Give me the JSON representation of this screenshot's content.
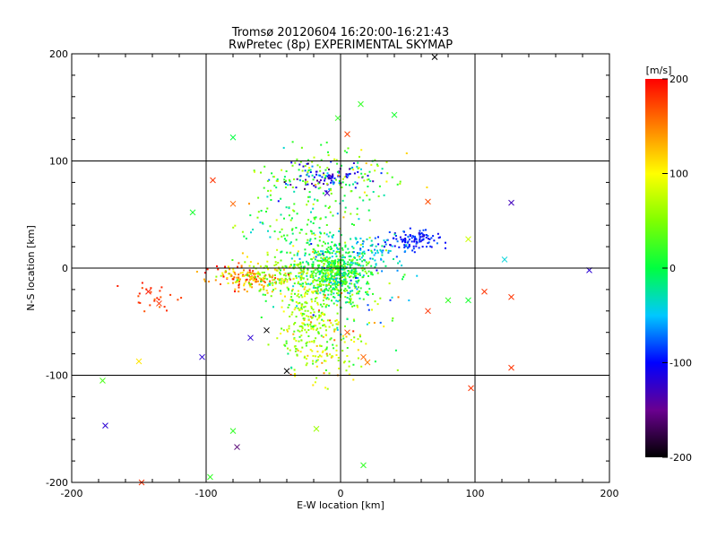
{
  "chart_data": {
    "type": "scatter",
    "title": "Tromsø 20120604 16:20:00-16:21:43",
    "subtitle": "RwPretec (8p) EXPERIMENTAL SKYMAP",
    "xlabel": "E-W location [km]",
    "ylabel": "N-S location [km]",
    "xlim": [
      -200,
      200
    ],
    "ylim": [
      -200,
      200
    ],
    "xticks": [
      -200,
      -100,
      0,
      100,
      200
    ],
    "yticks": [
      -200,
      -100,
      0,
      100,
      200
    ],
    "grid": true,
    "colorbar": {
      "label": "[m/s]",
      "range": [
        -200,
        200
      ],
      "ticks": [
        -200,
        -100,
        0,
        100,
        200
      ],
      "colormap": "rainbow: black-purple-blue-cyan-green-yellow-orange-red"
    },
    "markers": {
      "small": "dot (individual estimates)",
      "large": "x (averaged estimates)"
    },
    "clusters": [
      {
        "x": -3,
        "y": -5,
        "sx": 12,
        "sy": 14,
        "n": 560,
        "v": 10,
        "sv": 35
      },
      {
        "x": -25,
        "y": 40,
        "sx": 25,
        "sy": 30,
        "n": 260,
        "v": 20,
        "sv": 45
      },
      {
        "x": -10,
        "y": 85,
        "sx": 14,
        "sy": 6,
        "n": 90,
        "v": -110,
        "sv": 30
      },
      {
        "x": 0,
        "y": 90,
        "sx": 25,
        "sy": 12,
        "n": 90,
        "v": 40,
        "sv": 50
      },
      {
        "x": 55,
        "y": 25,
        "sx": 10,
        "sy": 5,
        "n": 110,
        "v": -95,
        "sv": 12
      },
      {
        "x": 25,
        "y": 15,
        "sx": 12,
        "sy": 8,
        "n": 70,
        "v": -40,
        "sv": 25
      },
      {
        "x": -70,
        "y": -10,
        "sx": 12,
        "sy": 6,
        "n": 160,
        "v": 130,
        "sv": 40
      },
      {
        "x": -40,
        "y": -8,
        "sx": 16,
        "sy": 10,
        "n": 140,
        "v": 70,
        "sv": 40
      },
      {
        "x": -25,
        "y": -50,
        "sx": 10,
        "sy": 22,
        "n": 220,
        "v": 60,
        "sv": 35
      },
      {
        "x": -10,
        "y": -75,
        "sx": 14,
        "sy": 18,
        "n": 90,
        "v": 90,
        "sv": 40
      },
      {
        "x": -140,
        "y": -25,
        "sx": 10,
        "sy": 8,
        "n": 25,
        "v": 180,
        "sv": 10
      },
      {
        "x": 10,
        "y": -20,
        "sx": 20,
        "sy": 25,
        "n": 80,
        "v": 20,
        "sv": 60
      }
    ],
    "scatter_x_points": [
      {
        "x": -80,
        "y": 122,
        "v": 0
      },
      {
        "x": -95,
        "y": 82,
        "v": 180
      },
      {
        "x": -110,
        "y": 52,
        "v": 10
      },
      {
        "x": 5,
        "y": 125,
        "v": 175
      },
      {
        "x": 15,
        "y": 153,
        "v": 20
      },
      {
        "x": 40,
        "y": 143,
        "v": 10
      },
      {
        "x": 70,
        "y": 197,
        "v": -200
      },
      {
        "x": -2,
        "y": 140,
        "v": 20
      },
      {
        "x": -80,
        "y": 60,
        "v": 160
      },
      {
        "x": -10,
        "y": 70,
        "v": -130
      },
      {
        "x": 65,
        "y": 62,
        "v": 170
      },
      {
        "x": 95,
        "y": 27,
        "v": 80
      },
      {
        "x": 127,
        "y": 61,
        "v": -130
      },
      {
        "x": 122,
        "y": 8,
        "v": -40
      },
      {
        "x": 185,
        "y": -2,
        "v": -120
      },
      {
        "x": 107,
        "y": -22,
        "v": 180
      },
      {
        "x": 127,
        "y": -27,
        "v": 180
      },
      {
        "x": 80,
        "y": -30,
        "v": 20
      },
      {
        "x": 95,
        "y": -30,
        "v": 10
      },
      {
        "x": 65,
        "y": -40,
        "v": 180
      },
      {
        "x": -67,
        "y": -65,
        "v": -120
      },
      {
        "x": -55,
        "y": -58,
        "v": -200
      },
      {
        "x": -40,
        "y": -96,
        "v": -200
      },
      {
        "x": -103,
        "y": -83,
        "v": -120
      },
      {
        "x": -150,
        "y": -87,
        "v": 110
      },
      {
        "x": -177,
        "y": -105,
        "v": 30
      },
      {
        "x": -175,
        "y": -147,
        "v": -120
      },
      {
        "x": -80,
        "y": -152,
        "v": 20
      },
      {
        "x": -77,
        "y": -167,
        "v": -160
      },
      {
        "x": -97,
        "y": -195,
        "v": 20
      },
      {
        "x": -148,
        "y": -200,
        "v": 180
      },
      {
        "x": 17,
        "y": -184,
        "v": 20
      },
      {
        "x": 17,
        "y": -83,
        "v": 160
      },
      {
        "x": 20,
        "y": -88,
        "v": 150
      },
      {
        "x": 97,
        "y": -112,
        "v": 180
      },
      {
        "x": 127,
        "y": -93,
        "v": 180
      },
      {
        "x": -18,
        "y": -150,
        "v": 60
      },
      {
        "x": 5,
        "y": -60,
        "v": 170
      },
      {
        "x": -143,
        "y": -22,
        "v": 190
      },
      {
        "x": -135,
        "y": -33,
        "v": 180
      }
    ]
  }
}
